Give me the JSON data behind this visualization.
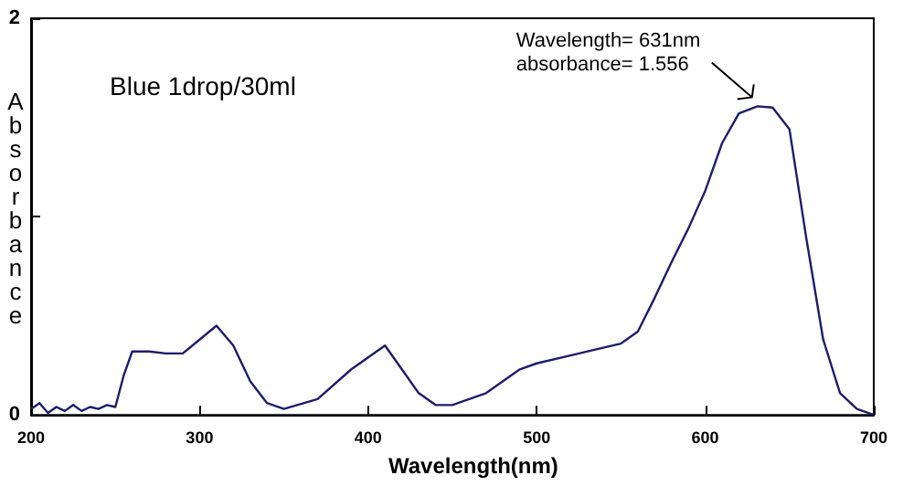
{
  "chart_data": {
    "type": "line",
    "title": "Blue 1drop/30ml",
    "xlabel": "Wavelength(nm)",
    "ylabel": "Absorbance",
    "x": [
      200,
      205,
      210,
      215,
      220,
      225,
      230,
      235,
      240,
      245,
      250,
      255,
      260,
      270,
      280,
      290,
      300,
      310,
      320,
      330,
      340,
      350,
      370,
      390,
      400,
      410,
      420,
      430,
      440,
      450,
      470,
      490,
      500,
      520,
      540,
      550,
      560,
      570,
      580,
      590,
      600,
      610,
      620,
      631,
      640,
      650,
      660,
      670,
      680,
      690,
      700
    ],
    "series": [
      {
        "color": "#1c1c6e",
        "values": [
          0.03,
          0.06,
          0.01,
          0.04,
          0.02,
          0.05,
          0.02,
          0.04,
          0.03,
          0.05,
          0.04,
          0.2,
          0.32,
          0.32,
          0.31,
          0.31,
          0.38,
          0.45,
          0.35,
          0.17,
          0.06,
          0.03,
          0.08,
          0.23,
          0.29,
          0.35,
          0.23,
          0.11,
          0.05,
          0.05,
          0.11,
          0.23,
          0.26,
          0.3,
          0.34,
          0.36,
          0.42,
          0.59,
          0.77,
          0.94,
          1.13,
          1.37,
          1.52,
          1.556,
          1.55,
          1.44,
          0.89,
          0.38,
          0.11,
          0.03,
          0
        ]
      }
    ],
    "xlim": [
      200,
      700
    ],
    "xticks": [
      200,
      300,
      400,
      500,
      600,
      700
    ],
    "ylim": [
      0,
      2
    ],
    "yticks": [
      0,
      {
        "value": 1,
        "label": null
      },
      2
    ],
    "annotations": [
      {
        "text": "Wavelength= 631nm\nabsorbance= 1.556",
        "x": 631,
        "y": 1.556
      }
    ],
    "grid": false,
    "marker": "none",
    "line_style": "solid"
  }
}
